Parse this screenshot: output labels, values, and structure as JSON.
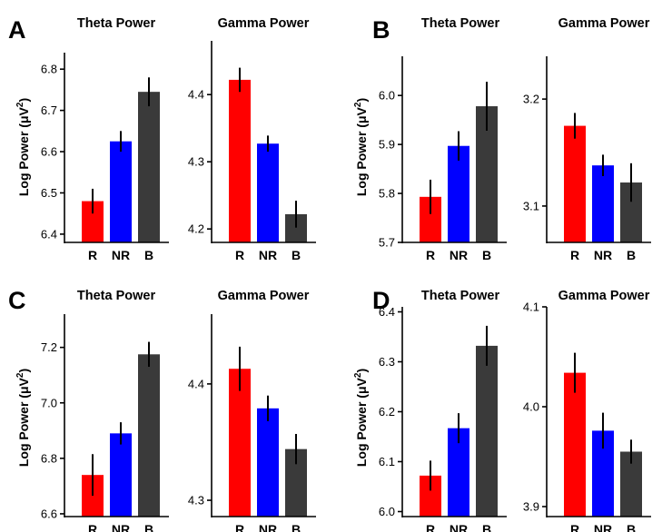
{
  "y_axis_label": {
    "prefix": "Log Power (",
    "mu": "μ",
    "v": "V",
    "sup": "2",
    "suffix": ")"
  },
  "colors": {
    "R": "#ff0000",
    "NR": "#0000ff",
    "B": "#3a3a3a"
  },
  "panels": [
    {
      "letter": "A"
    },
    {
      "letter": "B"
    },
    {
      "letter": "C"
    },
    {
      "letter": "D"
    }
  ],
  "chart_data": [
    {
      "type": "bar",
      "panel": "A",
      "title": "Theta Power",
      "categories": [
        "R",
        "NR",
        "B"
      ],
      "values": [
        6.48,
        6.625,
        6.745
      ],
      "errors": [
        0.03,
        0.025,
        0.035
      ],
      "ylim": [
        6.38,
        6.84
      ],
      "yticks": [
        6.4,
        6.5,
        6.6,
        6.7,
        6.8
      ],
      "ytick_labels": [
        "6.4",
        "6.5",
        "6.6",
        "6.7",
        "6.8"
      ]
    },
    {
      "type": "bar",
      "panel": "A",
      "title": "Gamma Power",
      "categories": [
        "R",
        "NR",
        "B"
      ],
      "values": [
        4.422,
        4.327,
        4.222
      ],
      "errors": [
        0.018,
        0.012,
        0.02
      ],
      "ylim": [
        4.18,
        4.48
      ],
      "yticks": [
        4.2,
        4.3,
        4.4
      ],
      "ytick_labels": [
        "4.2",
        "4.3",
        "4.4"
      ]
    },
    {
      "type": "bar",
      "panel": "B",
      "title": "Theta Power",
      "categories": [
        "R",
        "NR",
        "B"
      ],
      "values": [
        5.793,
        5.897,
        5.978
      ],
      "errors": [
        0.035,
        0.03,
        0.05
      ],
      "ylim": [
        5.7,
        6.08
      ],
      "yticks": [
        5.7,
        5.8,
        5.9,
        6.0
      ],
      "ytick_labels": [
        "5.7",
        "5.8",
        "5.9",
        "6.0"
      ]
    },
    {
      "type": "bar",
      "panel": "B",
      "title": "Gamma Power",
      "categories": [
        "R",
        "NR",
        "B"
      ],
      "values": [
        3.175,
        3.138,
        3.122
      ],
      "errors": [
        0.012,
        0.01,
        0.018
      ],
      "ylim": [
        3.066,
        3.24
      ],
      "yticks": [
        3.1,
        3.2
      ],
      "ytick_labels": [
        "3.1",
        "3.2"
      ]
    },
    {
      "type": "bar",
      "panel": "C",
      "title": "Theta Power",
      "categories": [
        "R",
        "NR",
        "B"
      ],
      "values": [
        6.74,
        6.89,
        7.175
      ],
      "errors": [
        0.075,
        0.04,
        0.045
      ],
      "ylim": [
        6.59,
        7.32
      ],
      "yticks": [
        6.6,
        6.8,
        7.0,
        7.2
      ],
      "ytick_labels": [
        "6.6",
        "6.8",
        "7.0",
        "7.2"
      ]
    },
    {
      "type": "bar",
      "panel": "C",
      "title": "Gamma Power",
      "categories": [
        "R",
        "NR",
        "B"
      ],
      "values": [
        4.413,
        4.379,
        4.344
      ],
      "errors": [
        0.019,
        0.011,
        0.013
      ],
      "ylim": [
        4.286,
        4.46
      ],
      "yticks": [
        4.3,
        4.4
      ],
      "ytick_labels": [
        "4.3",
        "4.4"
      ]
    },
    {
      "type": "bar",
      "panel": "D",
      "title": "Theta Power",
      "categories": [
        "R",
        "NR",
        "B"
      ],
      "values": [
        6.072,
        6.167,
        6.332
      ],
      "errors": [
        0.03,
        0.03,
        0.04
      ],
      "ylim": [
        5.99,
        6.41
      ],
      "yticks": [
        6.0,
        6.1,
        6.2,
        6.3,
        6.4
      ],
      "ytick_labels": [
        "6.0",
        "6.1",
        "6.2",
        "6.3",
        "6.4"
      ]
    },
    {
      "type": "bar",
      "panel": "D",
      "title": "Gamma Power",
      "categories": [
        "R",
        "NR",
        "B"
      ],
      "values": [
        4.034,
        3.976,
        3.955
      ],
      "errors": [
        0.02,
        0.018,
        0.012
      ],
      "ylim": [
        3.89,
        4.1
      ],
      "yticks": [
        3.9,
        4.0,
        4.1
      ],
      "ytick_labels": [
        "3.9",
        "4.0",
        "4.1"
      ]
    }
  ]
}
